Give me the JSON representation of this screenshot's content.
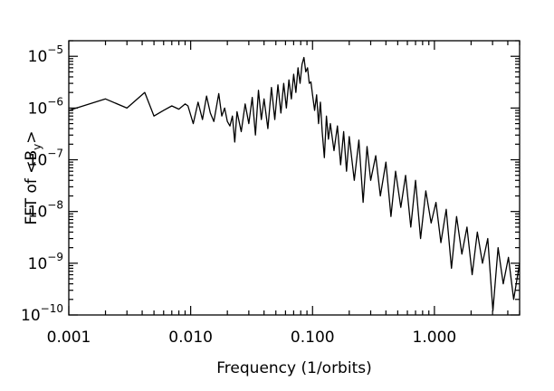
{
  "chart_data": {
    "type": "line",
    "title": "",
    "xlabel": "Frequency (1/orbits)",
    "ylabel": {
      "prefix": "FFT of <B",
      "subscript": "y",
      "suffix": ">"
    },
    "x_scale": "log",
    "y_scale": "log",
    "xlim": [
      0.001,
      5.0
    ],
    "ylim": [
      1e-10,
      2e-05
    ],
    "grid": false,
    "legend": "none",
    "x_ticks": [
      {
        "value": 0.001,
        "label": "0.001"
      },
      {
        "value": 0.01,
        "label": "0.010"
      },
      {
        "value": 0.1,
        "label": "0.100"
      },
      {
        "value": 1.0,
        "label": "1.000"
      }
    ],
    "y_ticks": [
      {
        "value": 1e-10,
        "base": "10",
        "exp": "−10"
      },
      {
        "value": 1e-09,
        "base": "10",
        "exp": "−9"
      },
      {
        "value": 1e-08,
        "base": "10",
        "exp": "−8"
      },
      {
        "value": 1e-07,
        "base": "10",
        "exp": "−7"
      },
      {
        "value": 1e-06,
        "base": "10",
        "exp": "−6"
      },
      {
        "value": 1e-05,
        "base": "10",
        "exp": "−5"
      }
    ],
    "series": [
      {
        "color": "#000000",
        "x": [
          0.001,
          0.002,
          0.003,
          0.0042,
          0.005,
          0.006,
          0.007,
          0.008,
          0.009,
          0.0095,
          0.0105,
          0.0115,
          0.0125,
          0.0135,
          0.0145,
          0.0155,
          0.017,
          0.018,
          0.019,
          0.02,
          0.021,
          0.022,
          0.023,
          0.024,
          0.026,
          0.028,
          0.03,
          0.032,
          0.034,
          0.036,
          0.038,
          0.04,
          0.043,
          0.046,
          0.049,
          0.052,
          0.055,
          0.058,
          0.061,
          0.064,
          0.067,
          0.07,
          0.073,
          0.076,
          0.079,
          0.082,
          0.085,
          0.088,
          0.091,
          0.094,
          0.097,
          0.1,
          0.104,
          0.108,
          0.112,
          0.116,
          0.12,
          0.125,
          0.13,
          0.135,
          0.14,
          0.15,
          0.16,
          0.17,
          0.18,
          0.19,
          0.2,
          0.22,
          0.24,
          0.26,
          0.28,
          0.3,
          0.33,
          0.36,
          0.4,
          0.44,
          0.48,
          0.53,
          0.58,
          0.64,
          0.7,
          0.77,
          0.85,
          0.94,
          1.03,
          1.13,
          1.25,
          1.38,
          1.52,
          1.68,
          1.85,
          2.04,
          2.25,
          2.48,
          2.74,
          3.02,
          3.33,
          3.67,
          4.05,
          4.47,
          5.0
        ],
        "y": [
          9e-07,
          1.5e-06,
          1e-06,
          2e-06,
          7e-07,
          9e-07,
          1.1e-06,
          9.5e-07,
          1.2e-06,
          1.1e-06,
          5e-07,
          1.3e-06,
          6e-07,
          1.7e-06,
          8e-07,
          5.5e-07,
          1.9e-06,
          7e-07,
          1e-06,
          5.5e-07,
          4.5e-07,
          7e-07,
          2.2e-07,
          8.5e-07,
          3.5e-07,
          1.2e-06,
          5e-07,
          1.6e-06,
          3e-07,
          2.2e-06,
          6e-07,
          1.5e-06,
          4e-07,
          2.5e-06,
          6e-07,
          2.8e-06,
          8e-07,
          3e-06,
          1e-06,
          3.5e-06,
          1.5e-06,
          4.5e-06,
          2e-06,
          6e-06,
          3e-06,
          7e-06,
          9.5e-06,
          5e-06,
          6e-06,
          3e-06,
          3.2e-06,
          1.8e-06,
          9e-07,
          1.8e-06,
          5e-07,
          1.3e-06,
          3.5e-07,
          1.1e-07,
          7e-07,
          2.5e-07,
          5e-07,
          1.5e-07,
          4.5e-07,
          8e-08,
          3.5e-07,
          6e-08,
          2.8e-07,
          4e-08,
          2.4e-07,
          1.5e-08,
          1.8e-07,
          4e-08,
          1.2e-07,
          2e-08,
          9e-08,
          8e-09,
          6e-08,
          1.2e-08,
          5e-08,
          5e-09,
          4e-08,
          3e-09,
          2.5e-08,
          6e-09,
          1.5e-08,
          2.5e-09,
          1.1e-08,
          8e-10,
          8e-09,
          1.5e-09,
          5e-09,
          6e-10,
          4e-09,
          1e-09,
          3e-09,
          1.2e-10,
          2e-09,
          4e-10,
          1.3e-09,
          2e-10,
          1e-09
        ]
      }
    ]
  }
}
